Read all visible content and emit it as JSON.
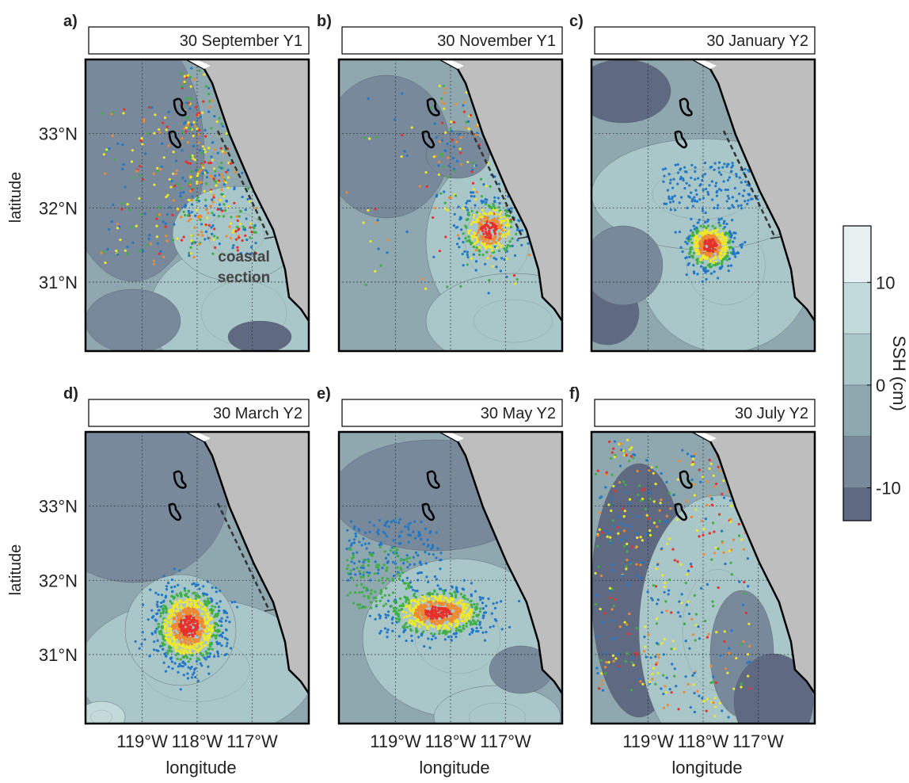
{
  "panels": [
    {
      "label": "a)",
      "title": "30 September Y1"
    },
    {
      "label": "b)",
      "title": "30 November Y1"
    },
    {
      "label": "c)",
      "title": "30 January Y2"
    },
    {
      "label": "d)",
      "title": "30 March Y2"
    },
    {
      "label": "e)",
      "title": "30 May Y2"
    },
    {
      "label": "f)",
      "title": "30 July Y2"
    }
  ],
  "axes": {
    "ylabel": "latitude",
    "xlabel": "longitude",
    "ylim": [
      30.07,
      34.0
    ],
    "xlim": [
      -120.03,
      -115.97
    ],
    "yticks": [
      {
        "value": 33,
        "label": "33°N"
      },
      {
        "value": 32,
        "label": "32°N"
      },
      {
        "value": 31,
        "label": "31°N"
      }
    ],
    "xticks": [
      {
        "value": -119,
        "label": "119°W"
      },
      {
        "value": -118,
        "label": "118°W"
      },
      {
        "value": -117,
        "label": "117°W"
      }
    ]
  },
  "annotation": "coastal section",
  "colorbar": {
    "title": "SSH (cm)",
    "lim": [
      -13.2,
      15.5
    ],
    "levels": [
      -10,
      -5,
      0,
      5,
      10
    ],
    "colors": [
      "#5f6a82",
      "#77899a",
      "#8fa8b0",
      "#a9c6c8",
      "#c3dada",
      "#e6f0f0"
    ],
    "ticks": [
      -10,
      0,
      10
    ]
  }
}
